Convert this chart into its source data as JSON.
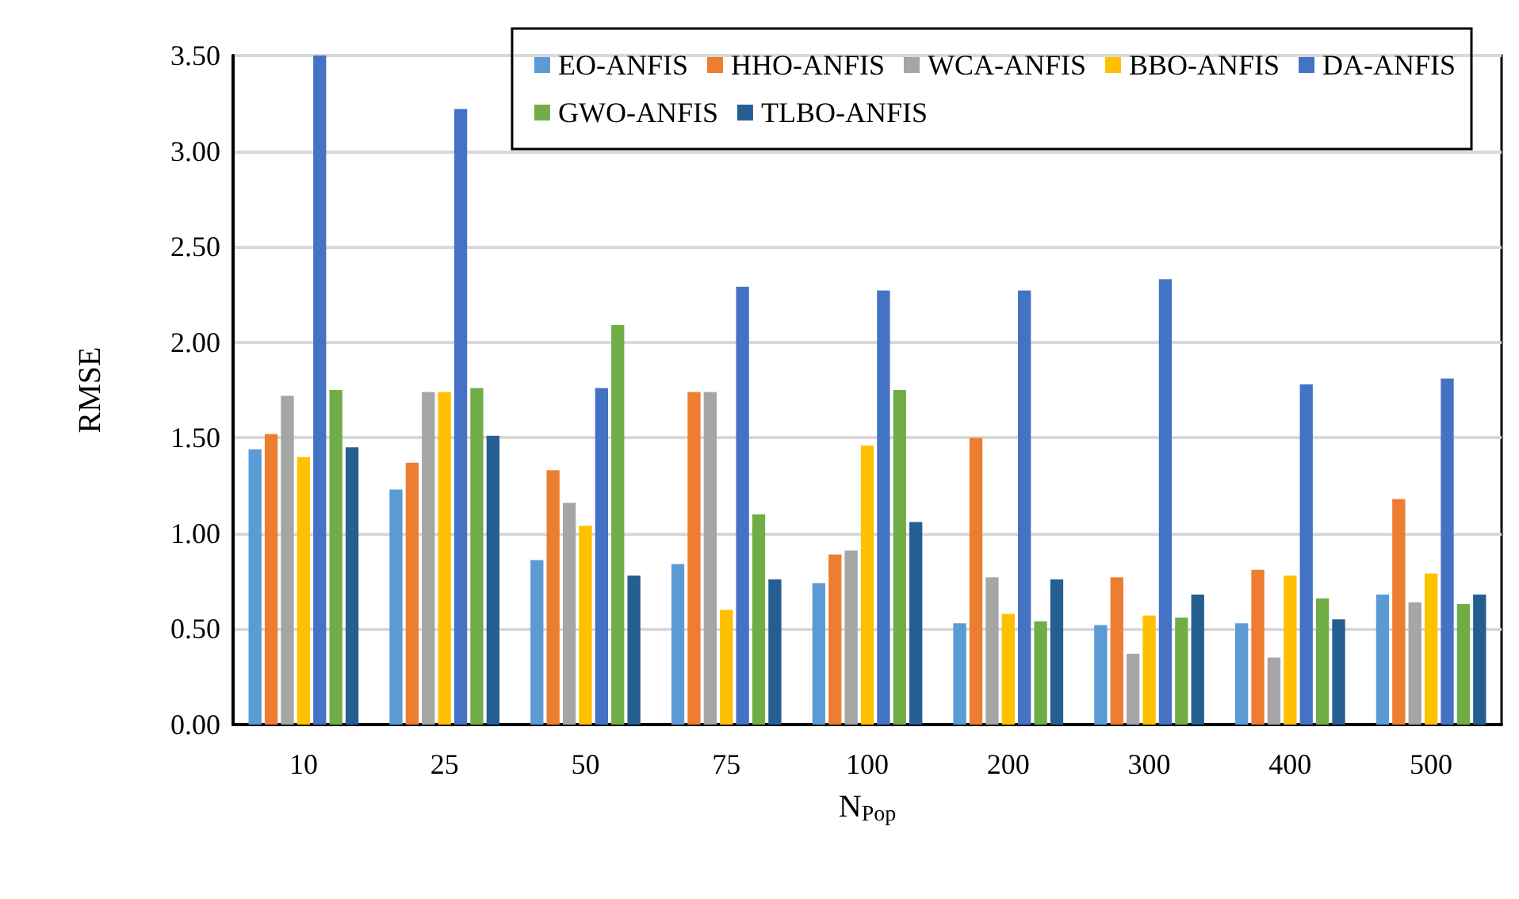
{
  "chart_data": {
    "type": "bar",
    "xlabel": "N$_{Pop}$",
    "ylabel": "RMSE",
    "categories": [
      "10",
      "25",
      "50",
      "75",
      "100",
      "200",
      "300",
      "400",
      "500"
    ],
    "series": [
      {
        "name": "EO-ANFIS",
        "color": "#5b9bd5",
        "values": [
          1.44,
          1.23,
          0.86,
          0.84,
          0.74,
          0.53,
          0.52,
          0.53,
          0.68
        ]
      },
      {
        "name": "HHO-ANFIS",
        "color": "#ed7d31",
        "values": [
          1.52,
          1.37,
          1.33,
          1.74,
          0.89,
          1.5,
          0.77,
          0.81,
          1.18
        ]
      },
      {
        "name": "WCA-ANFIS",
        "color": "#a5a5a5",
        "values": [
          1.72,
          1.74,
          1.16,
          1.74,
          0.91,
          0.77,
          0.37,
          0.35,
          0.64
        ]
      },
      {
        "name": "BBO-ANFIS",
        "color": "#ffc000",
        "values": [
          1.4,
          1.74,
          1.04,
          0.6,
          1.46,
          0.58,
          0.57,
          0.78,
          0.79
        ]
      },
      {
        "name": "DA-ANFIS",
        "color": "#4472c4",
        "values": [
          3.5,
          3.22,
          1.76,
          2.29,
          2.27,
          2.27,
          2.33,
          1.78,
          1.81
        ]
      },
      {
        "name": "GWO-ANFIS",
        "color": "#70ad47",
        "values": [
          1.75,
          1.76,
          2.09,
          1.1,
          1.75,
          0.54,
          0.56,
          0.66,
          0.63
        ]
      },
      {
        "name": "TLBO-ANFIS",
        "color": "#255e91",
        "values": [
          1.45,
          1.51,
          0.78,
          0.76,
          1.06,
          0.76,
          0.68,
          0.55,
          0.68
        ]
      }
    ],
    "ylim": [
      0,
      3.5
    ],
    "yticks": [
      {
        "value": 0,
        "label": "0.00"
      },
      {
        "value": 0.5,
        "label": "0.50"
      },
      {
        "value": 1,
        "label": "1.00"
      },
      {
        "value": 1.5,
        "label": "1.50"
      },
      {
        "value": 2,
        "label": "2.00"
      },
      {
        "value": 2.5,
        "label": "2.50"
      },
      {
        "value": 3,
        "label": "3.00"
      },
      {
        "value": 3.5,
        "label": "3.50"
      }
    ],
    "grid": "y",
    "legend": "top right"
  }
}
